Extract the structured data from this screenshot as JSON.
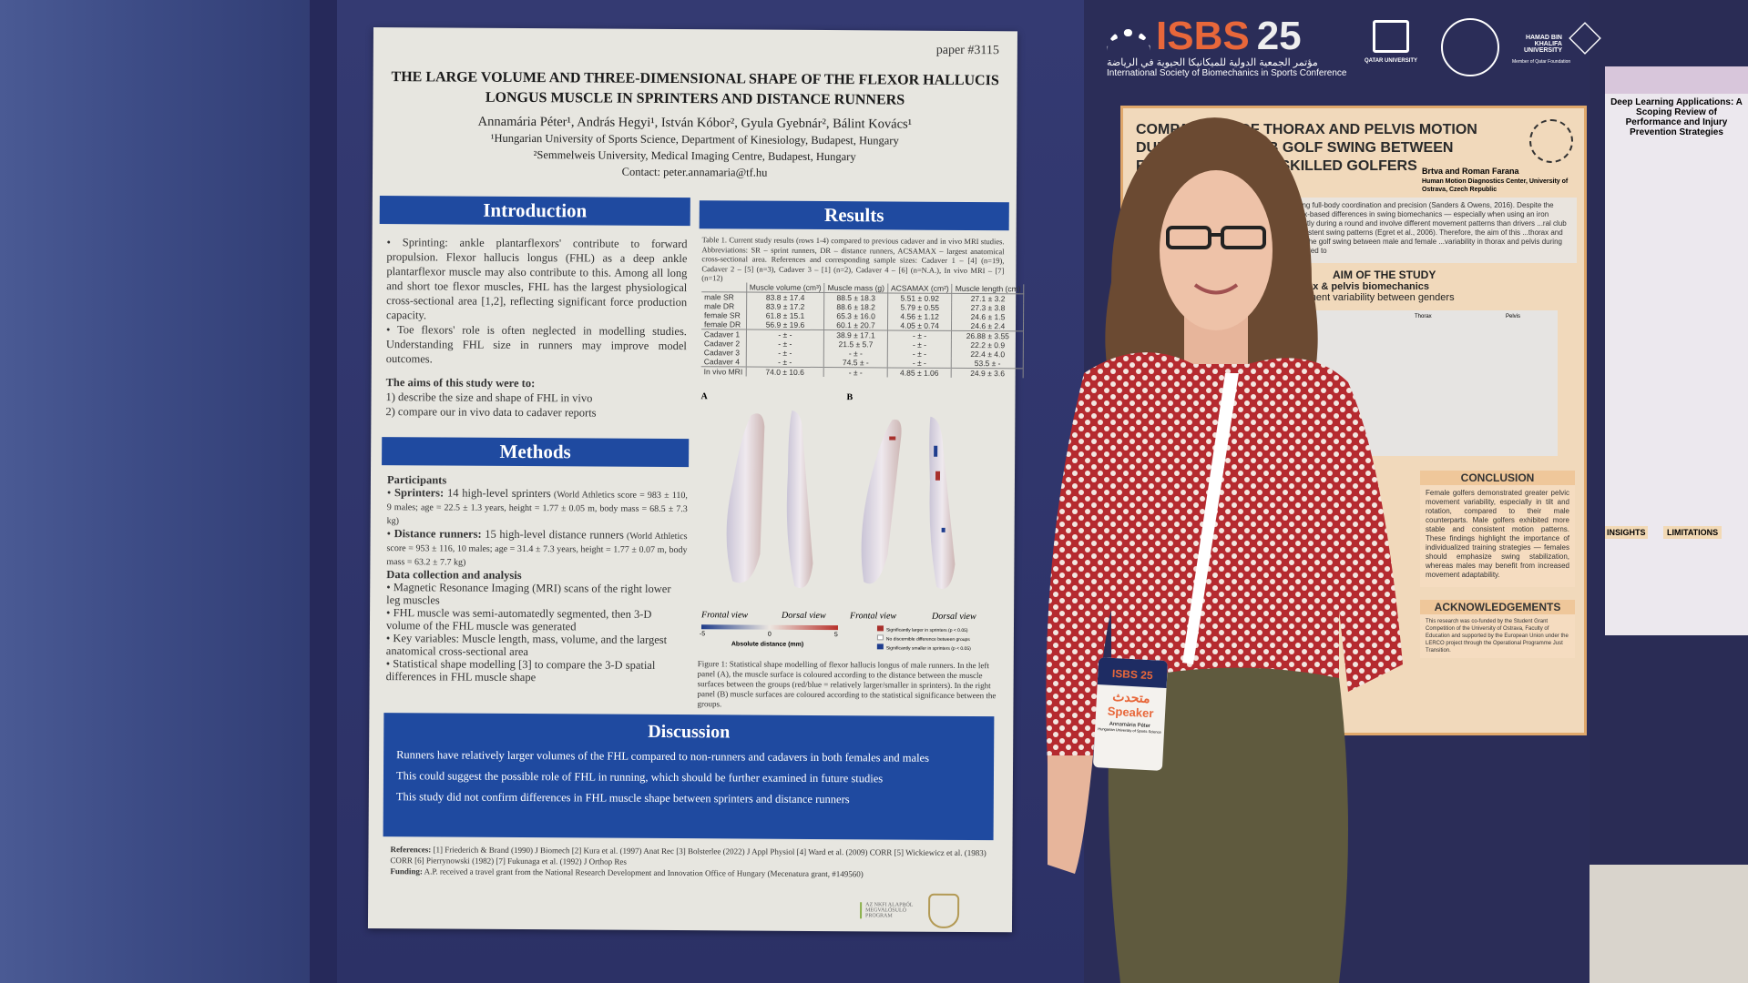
{
  "poster": {
    "paper_id": "paper #3115",
    "title": "THE LARGE VOLUME AND THREE-DIMENSIONAL SHAPE OF THE FLEXOR HALLUCIS LONGUS MUSCLE IN SPRINTERS AND DISTANCE RUNNERS",
    "authors": "Annamária Péter¹, András Hegyi¹, István Kóbor², Gyula Gyebnár², Bálint Kovács¹",
    "affil1": "¹Hungarian University of Sports Science, Department of Kinesiology, Budapest, Hungary",
    "affil2": "²Semmelweis University, Medical Imaging Centre, Budapest, Hungary",
    "contact": "Contact: peter.annamaria@tf.hu",
    "intro": {
      "heading": "Introduction",
      "bullets": [
        "Sprinting: ankle plantarflexors' contribute to forward propulsion. Flexor hallucis longus (FHL) as a deep ankle plantarflexor muscle may also contribute to this. Among all long and short toe flexor muscles, FHL has the largest physiological cross-sectional area [1,2], reflecting significant force production capacity.",
        "Toe flexors' role is often neglected in modelling studies. Understanding FHL size in runners may improve model outcomes."
      ],
      "aims_heading": "The aims of this study were to:",
      "aims": [
        "1)  describe the size and shape of FHL in vivo",
        "2)  compare our in vivo data to cadaver reports"
      ]
    },
    "methods": {
      "heading": "Methods",
      "participants_heading": "Participants",
      "sprinters_label": "Sprinters:",
      "sprinters": " 14 high-level sprinters",
      "sprinters_detail": " (World Athletics score = 983 ± 110, 9 males; age = 22.5 ± 1.3 years, height = 1.77 ± 0.05 m, body mass = 68.5 ± 7.3 kg)",
      "distance_label": "Distance runners:",
      "distance": " 15 high-level distance runners",
      "distance_detail": " (World Athletics score = 953 ± 116, 10 males; age = 31.4 ± 7.3 years, height = 1.77 ± 0.07 m, body mass = 63.2 ± 7.7 kg)",
      "data_heading": "Data collection and analysis",
      "data_bullets": [
        "Magnetic Resonance Imaging (MRI) scans of the right lower leg muscles",
        "FHL muscle was semi-automatedly segmented, then 3-D volume of the FHL muscle was generated",
        "Key variables: Muscle length, mass, volume, and the largest anatomical cross-sectional area",
        "Statistical shape modelling [3] to compare the 3-D spatial differences in FHL muscle shape"
      ]
    },
    "results": {
      "heading": "Results",
      "table_caption": "Table 1. Current study results (rows 1-4) compared to previous cadaver and in vivo MRI studies. Abbreviations: SR – sprint runners, DR – distance runners, ACSAMAX – largest anatomical cross-sectional area. References and corresponding sample sizes: Cadaver 1 – [4] (n=19), Cadaver 2 – [5] (n=3), Cadaver 3 – [1] (n=2), Cadaver 4 – [6] (n=N.A.), In vivo MRI – [7] (n=12)",
      "columns": [
        "",
        "Muscle volume (cm³)",
        "Muscle mass (g)",
        "ACSAMAX (cm²)",
        "Muscle length (cm)"
      ],
      "rows": [
        [
          "male SR",
          "83.8 ± 17.4",
          "88.5 ± 18.3",
          "5.51 ± 0.92",
          "27.1 ± 3.2"
        ],
        [
          "male DR",
          "83.9 ± 17.2",
          "88.6 ± 18.2",
          "5.79 ± 0.55",
          "27.3 ± 3.8"
        ],
        [
          "female SR",
          "61.8 ± 15.1",
          "65.3 ± 16.0",
          "4.56 ± 1.12",
          "24.6 ± 1.5"
        ],
        [
          "female DR",
          "56.9 ± 19.6",
          "60.1 ± 20.7",
          "4.05 ± 0.74",
          "24.6 ± 2.4"
        ],
        [
          "Cadaver 1",
          "- ± -",
          "38.9 ± 17.1",
          "- ± -",
          "26.88 ± 3.55"
        ],
        [
          "Cadaver 2",
          "- ± -",
          "21.5 ± 5.7",
          "- ± -",
          "22.2 ± 0.9"
        ],
        [
          "Cadaver 3",
          "- ± -",
          "- ± -",
          "- ± -",
          "22.4 ± 4.0"
        ],
        [
          "Cadaver 4",
          "- ± -",
          "74.5 ± -",
          "- ± -",
          "53.5 ± -"
        ],
        [
          "In vivo MRI",
          "74.0 ± 10.6",
          "- ± -",
          "4.85 ± 1.06",
          "24.9 ± 3.6"
        ]
      ],
      "panel_a": "A",
      "panel_b": "B",
      "views": [
        "Frontal view",
        "Dorsal view",
        "Frontal view",
        "Dorsal view"
      ],
      "scale_min": "-5",
      "scale_mid": "0",
      "scale_max": "5",
      "scale_label": "Absolute distance (mm)",
      "legend": [
        "Significantly larger in sprinters (p < 0.05)",
        "No discernible difference between groups",
        "Significantly smaller in sprinters (p < 0.05)"
      ],
      "figure_caption": "Figure 1: Statistical shape modelling of flexor hallucis longus of male runners. In the left panel (A), the muscle surface is coloured according to the distance between the muscle surfaces between the groups (red/blue = relatively larger/smaller in sprinters). In the right panel (B) muscle surfaces are coloured according to the statistical significance between the groups."
    },
    "discussion": {
      "heading": "Discussion",
      "points": [
        "Runners have relatively larger volumes of the FHL compared to non-runners and cadavers in both females and males",
        "This could suggest the possible role of FHL in running, which should be further examined in future studies",
        "This study did not confirm differences in FHL muscle shape between sprinters and distance runners"
      ]
    },
    "references_label": "References:",
    "references": " [1] Friederich & Brand (1990) J Biomech [2] Kura et al. (1997) Anat Rec [3] Bolsterlee (2022) J Appl Physiol [4] Ward et al. (2009) CORR [5] Wickiewicz et al. (1983) CORR [6] Pierrynowski (1982) [7] Fukunaga et al. (1992) J Orthop Res",
    "funding_label": "Funding:",
    "funding": " A.P. received a travel grant from the National Research Development and Innovation Office of Hungary (Mecenatura grant, #149560)",
    "program_logo": "AZ NKFI ALAPBÓL MEGVALÓSULÓ PROGRAM"
  },
  "header": {
    "logo": "ISBS",
    "logo_num": "25",
    "arabic": "مؤتمر الجمعية الدولية للميكانيكا الحيوية في الرياضة",
    "subtitle": "International Society of Biomechanics in Sports Conference",
    "qu": "QATAR UNIVERSITY",
    "hbku": "HAMAD BIN KHALIFA UNIVERSITY",
    "hbku_sub": "Member of Qatar Foundation"
  },
  "golf": {
    "title": "COMPARISON OF THORAX AND PELVIS MOTION DURING IRON CLUB GOLF SWING BETWEEN FEMALE AND MALE SKILLED GOLFERS",
    "authors": "Brtva and Roman Farana",
    "affil": "Human Motion Diagnostics Center, University of Ostrava, Czech Republic",
    "intro": "...movement requiring full-body coordination and precision (Sanders & Owens, 2016). Despite the ...rarely explored sex-based differences in swing biomechanics — especially when using an iron ...used more frequently during a round and involve different movement patterns than drivers ...ral club for realistic and consistent swing patterns (Egret et al., 2006). Therefore, the aim of this ...thorax and pelvis motion during the golf swing between male and female ...variability in thorax and pelvis during the golf swing compared to",
    "aim_heading": "AIM OF THE STUDY",
    "aim1": "Compare thorax & pelvis biomechanics",
    "aim2": "Evaluate movement variability between genders",
    "plot_labels": [
      "Thorax",
      "Pelvis"
    ],
    "conclusion_heading": "CONCLUSION",
    "conclusion": "Female golfers demonstrated greater pelvic movement variability, especially in tilt and rotation, compared to their male counterparts. Male golfers exhibited more stable and consistent motion patterns. These findings highlight the importance of individualized training strategies — females should emphasize swing stabilization, whereas males may benefit from increased movement adaptability.",
    "ack_heading": "ACKNOWLEDGEMENTS",
    "ack": "This research was co-funded by the Student Grant Competition of the University of Ostrava, Faculty of Education and supported by the European Union under the LERCO project through the Operational Programme Just Transition."
  },
  "far_poster": {
    "title": "Deep Learning Applications: A Scoping Review of Performance and Injury Prevention Strategies",
    "sections": [
      "INSIGHTS",
      "LIMITATIONS"
    ]
  },
  "badge": {
    "logo": "ISBS 25",
    "arabic": "متحدث",
    "role": "Speaker",
    "name": "Annamária Péter",
    "affil": "Hungarian University of Sports Science"
  },
  "colors": {
    "poster_blue": "#1f4aa0",
    "board_navy": "#2c3166",
    "isbs_orange": "#e8673a",
    "golf_orange": "#f1d9bb",
    "blouse_red": "#b52a2f",
    "pants_olive": "#5f5a3e"
  }
}
